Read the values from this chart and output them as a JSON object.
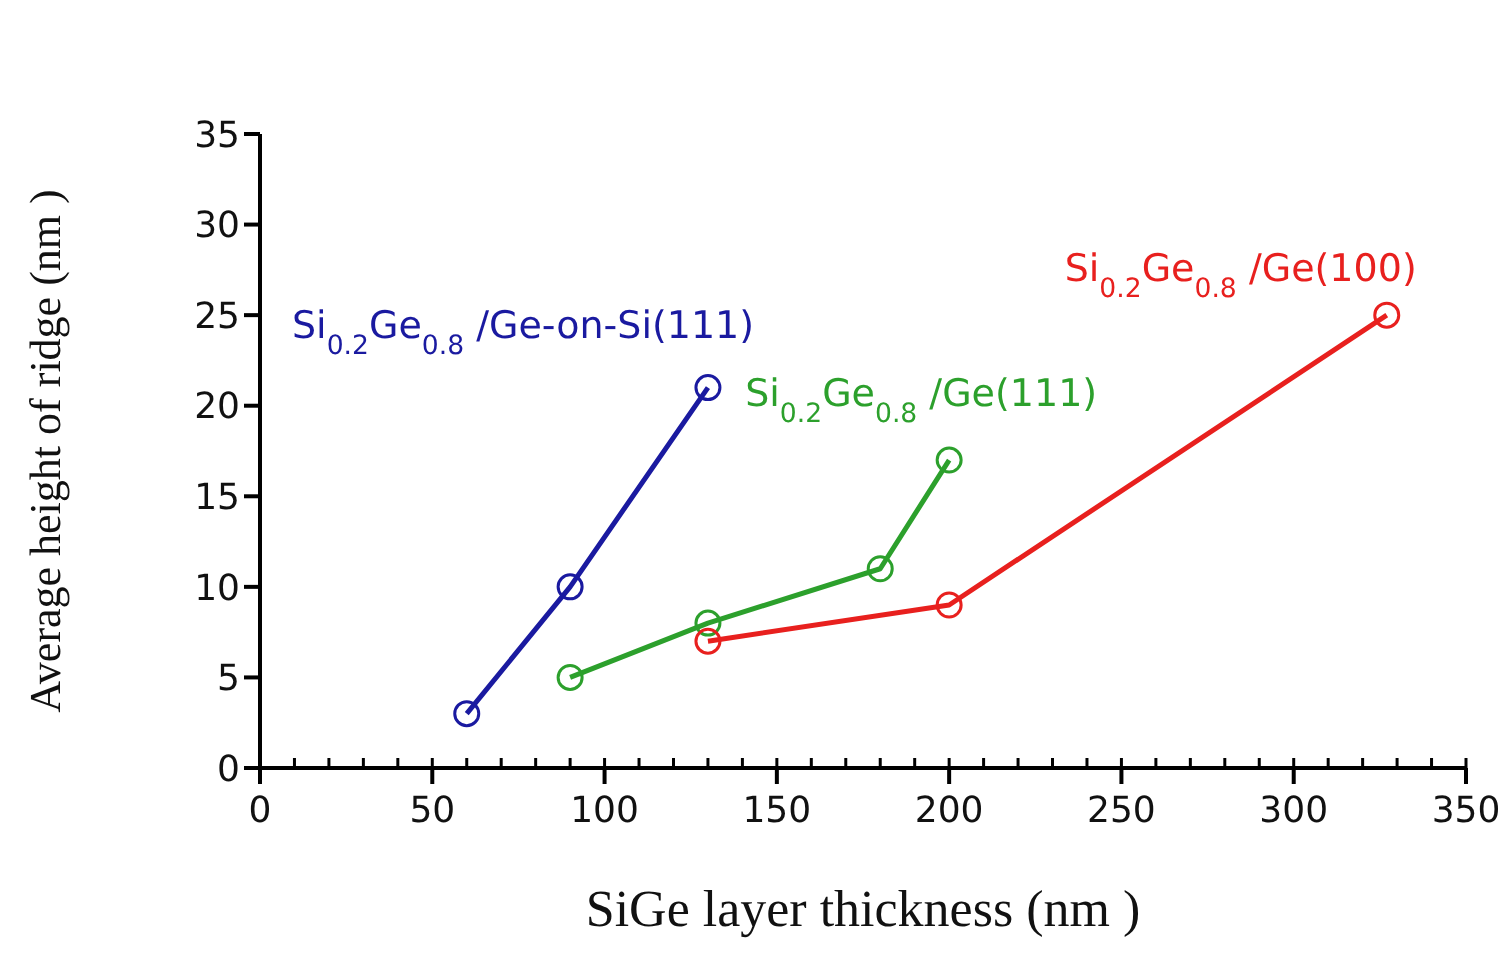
{
  "chart_data": {
    "type": "line",
    "xlabel": "SiGe layer thickness (nm )",
    "ylabel": "Average height of ridge  (nm )",
    "xlim": [
      0,
      350
    ],
    "ylim": [
      0,
      35
    ],
    "xticks": [
      0,
      50,
      100,
      150,
      200,
      250,
      300,
      350
    ],
    "yticks": [
      0,
      5,
      10,
      15,
      20,
      25,
      30,
      35
    ],
    "grid": false,
    "legend": false,
    "marker": "circle",
    "line_style": "solid",
    "series": [
      {
        "name": "Si$_{0.2}$Ge$_{0.8}$ /Ge-on-Si(111)",
        "color": "#1a1aa0",
        "x": [
          60,
          90,
          130
        ],
        "values": [
          3,
          10,
          21
        ]
      },
      {
        "name": "Si$_{0.2}$Ge$_{0.8}$ /Ge(111)",
        "color": "#2ca02c",
        "x": [
          90,
          130,
          180,
          200
        ],
        "values": [
          5,
          8,
          11,
          17
        ]
      },
      {
        "name": "Si$_{0.2}$Ge$_{0.8}$ /Ge(100)",
        "color": "#e8201e",
        "x": [
          130,
          200,
          327
        ],
        "values": [
          7,
          9,
          25
        ]
      }
    ]
  }
}
